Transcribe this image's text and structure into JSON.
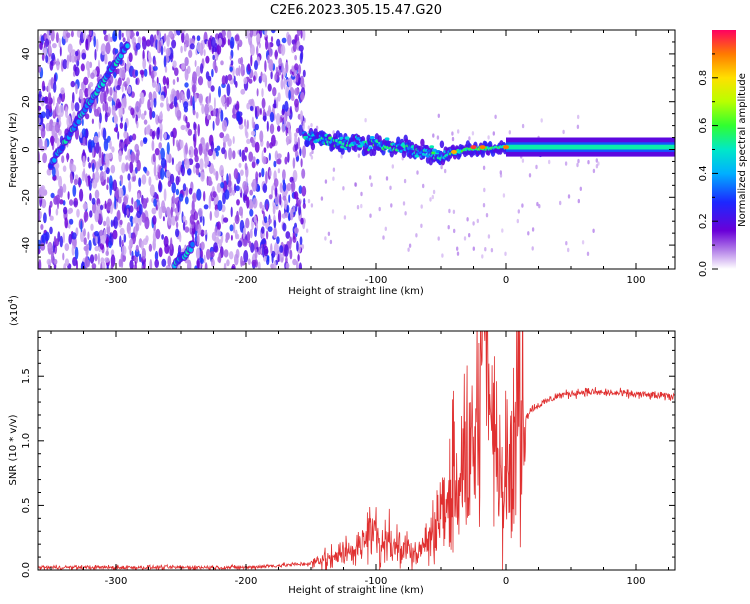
{
  "title": "C2E6.2023.305.15.47.G20",
  "chart_data": [
    {
      "type": "heatmap",
      "xlabel": "Height of straight line (km)",
      "ylabel": "Frequency (Hz)",
      "xlim": [
        -360,
        130
      ],
      "ylim": [
        -50,
        50
      ],
      "xticks": [
        "-300",
        "-200",
        "-100",
        "0",
        "100"
      ],
      "yticks": [
        "-40",
        "-20",
        "0",
        "20",
        "40"
      ],
      "colorbar": {
        "label": "Normalized spectral amplitude",
        "range": [
          0,
          1
        ],
        "ticks": [
          "0.0",
          "0.2",
          "0.4",
          "0.6",
          "0.8"
        ]
      },
      "features": [
        {
          "label": "diagonal streak",
          "points": [
            [
              -350,
              -6
            ],
            [
              -320,
              20
            ],
            [
              -290,
              45
            ]
          ]
        },
        {
          "label": "lower diagonal streak",
          "points": [
            [
              -255,
              -48
            ],
            [
              -240,
              -40
            ]
          ]
        },
        {
          "label": "central band",
          "points": [
            [
              -155,
              5
            ],
            [
              -100,
              2
            ],
            [
              -70,
              0
            ],
            [
              -50,
              -3
            ],
            [
              -30,
              0
            ],
            [
              0,
              1
            ],
            [
              130,
              1
            ]
          ]
        }
      ]
    },
    {
      "type": "line",
      "xlabel": "Height of straight line (km)",
      "ylabel": "SNR (10 * v/v)",
      "scale_label": "(x10",
      "scale_exp": "4",
      "scale_close": ")",
      "xlim": [
        -360,
        130
      ],
      "ylim": [
        0,
        18500
      ],
      "xticks": [
        "-300",
        "-200",
        "-100",
        "0",
        "100"
      ],
      "yticks": [
        "0.0",
        "0.5",
        "1.0",
        "1.5"
      ],
      "series_color": "#e03030",
      "series": [
        {
          "x": [
            -360,
            -200,
            -150,
            -120,
            -100,
            -85,
            -70,
            -55,
            -45,
            -35,
            -25,
            -17,
            -10,
            0,
            10,
            20,
            40,
            60,
            80,
            100,
            130
          ],
          "y": [
            200,
            200,
            500,
            1500,
            2500,
            2000,
            1200,
            3000,
            5500,
            7500,
            9000,
            18500,
            9000,
            8000,
            11000,
            12500,
            13500,
            13800,
            13700,
            13600,
            13400
          ]
        }
      ]
    }
  ]
}
